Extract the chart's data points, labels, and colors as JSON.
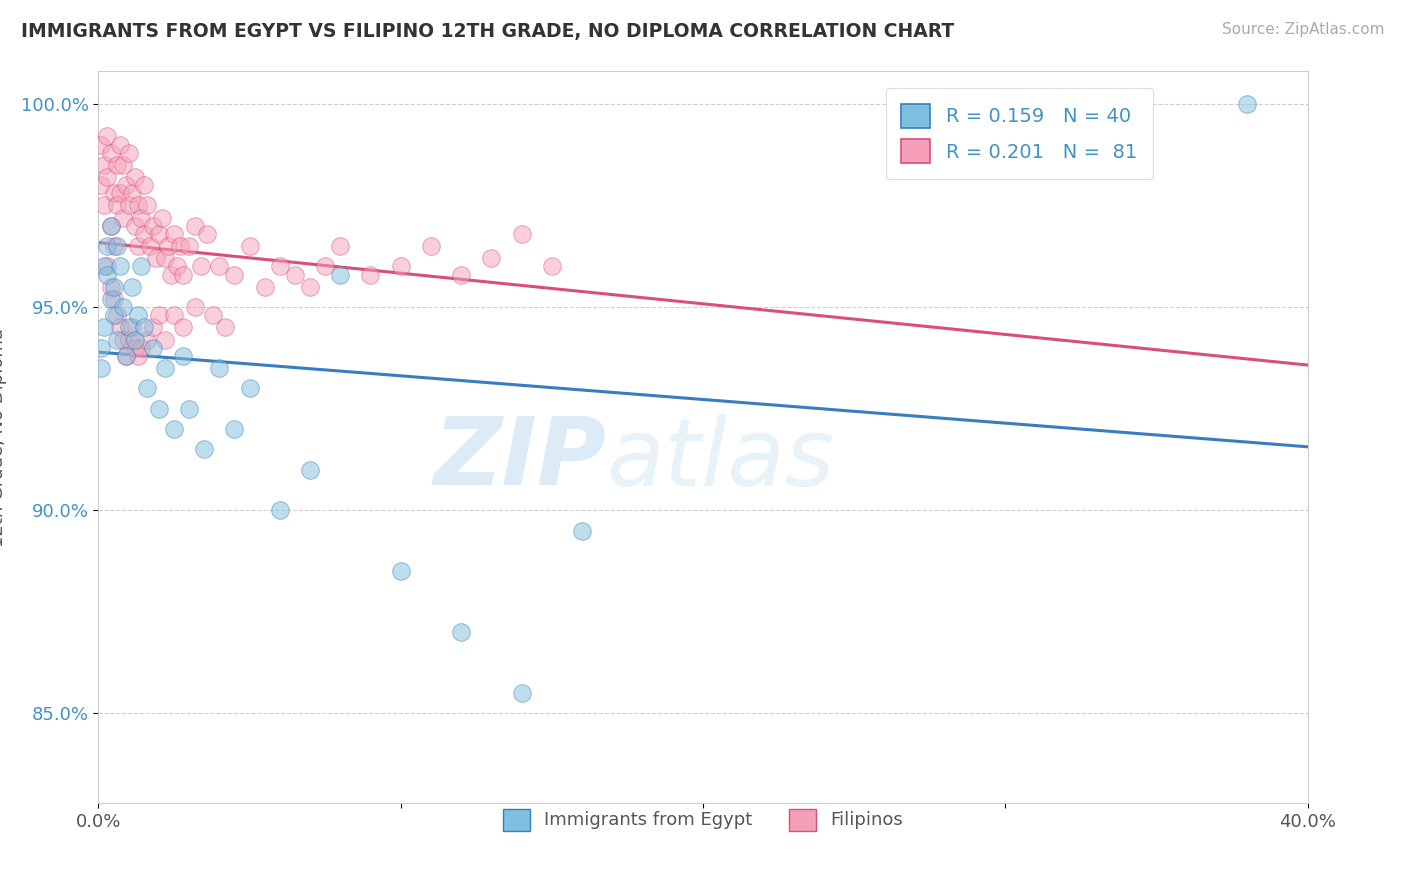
{
  "title": "IMMIGRANTS FROM EGYPT VS FILIPINO 12TH GRADE, NO DIPLOMA CORRELATION CHART",
  "source": "Source: ZipAtlas.com",
  "ylabel": "12th Grade, No Diploma",
  "xmin": 0.0,
  "xmax": 0.4,
  "ymin": 0.828,
  "ymax": 1.008,
  "yticks": [
    0.85,
    0.9,
    0.95,
    1.0
  ],
  "yticklabels": [
    "85.0%",
    "90.0%",
    "95.0%",
    "100.0%"
  ],
  "color_egypt": "#7fbfdf",
  "color_filipino": "#f5a0b8",
  "trend_egypt_color": "#3a7dbf",
  "trend_filipino_color": "#d94f7a",
  "egypt_x": [
    0.001,
    0.001,
    0.002,
    0.002,
    0.003,
    0.003,
    0.004,
    0.004,
    0.005,
    0.005,
    0.006,
    0.006,
    0.007,
    0.008,
    0.009,
    0.01,
    0.011,
    0.012,
    0.013,
    0.014,
    0.015,
    0.016,
    0.018,
    0.02,
    0.022,
    0.025,
    0.028,
    0.03,
    0.035,
    0.04,
    0.045,
    0.05,
    0.06,
    0.07,
    0.08,
    0.1,
    0.12,
    0.14,
    0.16,
    0.38
  ],
  "egypt_y": [
    0.935,
    0.94,
    0.945,
    0.96,
    0.958,
    0.965,
    0.952,
    0.97,
    0.948,
    0.955,
    0.942,
    0.965,
    0.96,
    0.95,
    0.938,
    0.945,
    0.955,
    0.942,
    0.948,
    0.96,
    0.945,
    0.93,
    0.94,
    0.925,
    0.935,
    0.92,
    0.938,
    0.925,
    0.915,
    0.935,
    0.92,
    0.93,
    0.9,
    0.91,
    0.958,
    0.885,
    0.87,
    0.855,
    0.895,
    1.0
  ],
  "filipino_x": [
    0.001,
    0.001,
    0.002,
    0.002,
    0.003,
    0.003,
    0.004,
    0.004,
    0.005,
    0.005,
    0.006,
    0.006,
    0.007,
    0.007,
    0.008,
    0.008,
    0.009,
    0.01,
    0.01,
    0.011,
    0.012,
    0.012,
    0.013,
    0.013,
    0.014,
    0.015,
    0.015,
    0.016,
    0.017,
    0.018,
    0.019,
    0.02,
    0.021,
    0.022,
    0.023,
    0.024,
    0.025,
    0.026,
    0.027,
    0.028,
    0.03,
    0.032,
    0.034,
    0.036,
    0.04,
    0.045,
    0.05,
    0.055,
    0.06,
    0.065,
    0.07,
    0.075,
    0.08,
    0.09,
    0.1,
    0.11,
    0.12,
    0.13,
    0.14,
    0.15,
    0.003,
    0.004,
    0.005,
    0.006,
    0.007,
    0.008,
    0.009,
    0.01,
    0.011,
    0.012,
    0.013,
    0.014,
    0.016,
    0.018,
    0.02,
    0.022,
    0.025,
    0.028,
    0.032,
    0.038,
    0.042
  ],
  "filipino_y": [
    0.99,
    0.98,
    0.985,
    0.975,
    0.992,
    0.982,
    0.988,
    0.97,
    0.978,
    0.965,
    0.985,
    0.975,
    0.99,
    0.978,
    0.985,
    0.972,
    0.98,
    0.988,
    0.975,
    0.978,
    0.97,
    0.982,
    0.975,
    0.965,
    0.972,
    0.98,
    0.968,
    0.975,
    0.965,
    0.97,
    0.962,
    0.968,
    0.972,
    0.962,
    0.965,
    0.958,
    0.968,
    0.96,
    0.965,
    0.958,
    0.965,
    0.97,
    0.96,
    0.968,
    0.96,
    0.958,
    0.965,
    0.955,
    0.96,
    0.958,
    0.955,
    0.96,
    0.965,
    0.958,
    0.96,
    0.965,
    0.958,
    0.962,
    0.968,
    0.96,
    0.96,
    0.955,
    0.952,
    0.948,
    0.945,
    0.942,
    0.938,
    0.942,
    0.945,
    0.94,
    0.938,
    0.94,
    0.942,
    0.945,
    0.948,
    0.942,
    0.948,
    0.945,
    0.95,
    0.948,
    0.945
  ]
}
